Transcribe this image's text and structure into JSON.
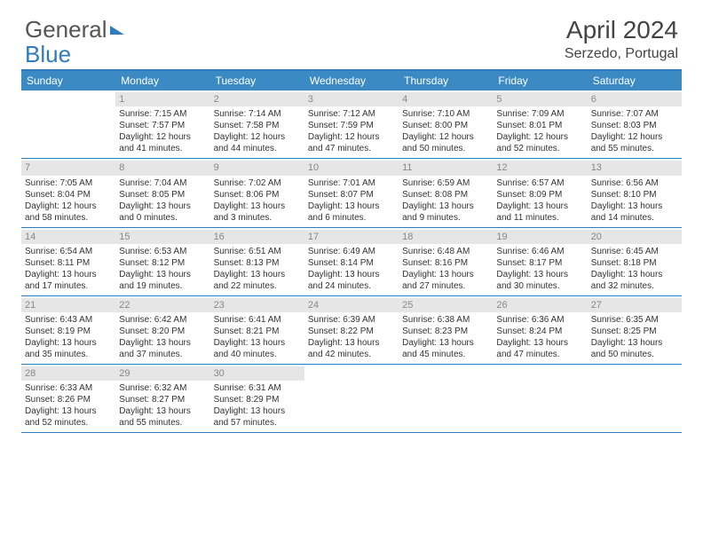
{
  "logo": {
    "text1": "General",
    "text2": "Blue"
  },
  "title": "April 2024",
  "location": "Serzedo, Portugal",
  "colors": {
    "header_bg": "#3b8ac4",
    "border": "#2f7bbf",
    "daynum_bg": "#e6e6e6"
  },
  "weekdays": [
    "Sunday",
    "Monday",
    "Tuesday",
    "Wednesday",
    "Thursday",
    "Friday",
    "Saturday"
  ],
  "weeks": [
    [
      {
        "num": "",
        "sunrise": "",
        "sunset": "",
        "daylight": ""
      },
      {
        "num": "1",
        "sunrise": "Sunrise: 7:15 AM",
        "sunset": "Sunset: 7:57 PM",
        "daylight": "Daylight: 12 hours and 41 minutes."
      },
      {
        "num": "2",
        "sunrise": "Sunrise: 7:14 AM",
        "sunset": "Sunset: 7:58 PM",
        "daylight": "Daylight: 12 hours and 44 minutes."
      },
      {
        "num": "3",
        "sunrise": "Sunrise: 7:12 AM",
        "sunset": "Sunset: 7:59 PM",
        "daylight": "Daylight: 12 hours and 47 minutes."
      },
      {
        "num": "4",
        "sunrise": "Sunrise: 7:10 AM",
        "sunset": "Sunset: 8:00 PM",
        "daylight": "Daylight: 12 hours and 50 minutes."
      },
      {
        "num": "5",
        "sunrise": "Sunrise: 7:09 AM",
        "sunset": "Sunset: 8:01 PM",
        "daylight": "Daylight: 12 hours and 52 minutes."
      },
      {
        "num": "6",
        "sunrise": "Sunrise: 7:07 AM",
        "sunset": "Sunset: 8:03 PM",
        "daylight": "Daylight: 12 hours and 55 minutes."
      }
    ],
    [
      {
        "num": "7",
        "sunrise": "Sunrise: 7:05 AM",
        "sunset": "Sunset: 8:04 PM",
        "daylight": "Daylight: 12 hours and 58 minutes."
      },
      {
        "num": "8",
        "sunrise": "Sunrise: 7:04 AM",
        "sunset": "Sunset: 8:05 PM",
        "daylight": "Daylight: 13 hours and 0 minutes."
      },
      {
        "num": "9",
        "sunrise": "Sunrise: 7:02 AM",
        "sunset": "Sunset: 8:06 PM",
        "daylight": "Daylight: 13 hours and 3 minutes."
      },
      {
        "num": "10",
        "sunrise": "Sunrise: 7:01 AM",
        "sunset": "Sunset: 8:07 PM",
        "daylight": "Daylight: 13 hours and 6 minutes."
      },
      {
        "num": "11",
        "sunrise": "Sunrise: 6:59 AM",
        "sunset": "Sunset: 8:08 PM",
        "daylight": "Daylight: 13 hours and 9 minutes."
      },
      {
        "num": "12",
        "sunrise": "Sunrise: 6:57 AM",
        "sunset": "Sunset: 8:09 PM",
        "daylight": "Daylight: 13 hours and 11 minutes."
      },
      {
        "num": "13",
        "sunrise": "Sunrise: 6:56 AM",
        "sunset": "Sunset: 8:10 PM",
        "daylight": "Daylight: 13 hours and 14 minutes."
      }
    ],
    [
      {
        "num": "14",
        "sunrise": "Sunrise: 6:54 AM",
        "sunset": "Sunset: 8:11 PM",
        "daylight": "Daylight: 13 hours and 17 minutes."
      },
      {
        "num": "15",
        "sunrise": "Sunrise: 6:53 AM",
        "sunset": "Sunset: 8:12 PM",
        "daylight": "Daylight: 13 hours and 19 minutes."
      },
      {
        "num": "16",
        "sunrise": "Sunrise: 6:51 AM",
        "sunset": "Sunset: 8:13 PM",
        "daylight": "Daylight: 13 hours and 22 minutes."
      },
      {
        "num": "17",
        "sunrise": "Sunrise: 6:49 AM",
        "sunset": "Sunset: 8:14 PM",
        "daylight": "Daylight: 13 hours and 24 minutes."
      },
      {
        "num": "18",
        "sunrise": "Sunrise: 6:48 AM",
        "sunset": "Sunset: 8:16 PM",
        "daylight": "Daylight: 13 hours and 27 minutes."
      },
      {
        "num": "19",
        "sunrise": "Sunrise: 6:46 AM",
        "sunset": "Sunset: 8:17 PM",
        "daylight": "Daylight: 13 hours and 30 minutes."
      },
      {
        "num": "20",
        "sunrise": "Sunrise: 6:45 AM",
        "sunset": "Sunset: 8:18 PM",
        "daylight": "Daylight: 13 hours and 32 minutes."
      }
    ],
    [
      {
        "num": "21",
        "sunrise": "Sunrise: 6:43 AM",
        "sunset": "Sunset: 8:19 PM",
        "daylight": "Daylight: 13 hours and 35 minutes."
      },
      {
        "num": "22",
        "sunrise": "Sunrise: 6:42 AM",
        "sunset": "Sunset: 8:20 PM",
        "daylight": "Daylight: 13 hours and 37 minutes."
      },
      {
        "num": "23",
        "sunrise": "Sunrise: 6:41 AM",
        "sunset": "Sunset: 8:21 PM",
        "daylight": "Daylight: 13 hours and 40 minutes."
      },
      {
        "num": "24",
        "sunrise": "Sunrise: 6:39 AM",
        "sunset": "Sunset: 8:22 PM",
        "daylight": "Daylight: 13 hours and 42 minutes."
      },
      {
        "num": "25",
        "sunrise": "Sunrise: 6:38 AM",
        "sunset": "Sunset: 8:23 PM",
        "daylight": "Daylight: 13 hours and 45 minutes."
      },
      {
        "num": "26",
        "sunrise": "Sunrise: 6:36 AM",
        "sunset": "Sunset: 8:24 PM",
        "daylight": "Daylight: 13 hours and 47 minutes."
      },
      {
        "num": "27",
        "sunrise": "Sunrise: 6:35 AM",
        "sunset": "Sunset: 8:25 PM",
        "daylight": "Daylight: 13 hours and 50 minutes."
      }
    ],
    [
      {
        "num": "28",
        "sunrise": "Sunrise: 6:33 AM",
        "sunset": "Sunset: 8:26 PM",
        "daylight": "Daylight: 13 hours and 52 minutes."
      },
      {
        "num": "29",
        "sunrise": "Sunrise: 6:32 AM",
        "sunset": "Sunset: 8:27 PM",
        "daylight": "Daylight: 13 hours and 55 minutes."
      },
      {
        "num": "30",
        "sunrise": "Sunrise: 6:31 AM",
        "sunset": "Sunset: 8:29 PM",
        "daylight": "Daylight: 13 hours and 57 minutes."
      },
      {
        "num": "",
        "sunrise": "",
        "sunset": "",
        "daylight": ""
      },
      {
        "num": "",
        "sunrise": "",
        "sunset": "",
        "daylight": ""
      },
      {
        "num": "",
        "sunrise": "",
        "sunset": "",
        "daylight": ""
      },
      {
        "num": "",
        "sunrise": "",
        "sunset": "",
        "daylight": ""
      }
    ]
  ]
}
